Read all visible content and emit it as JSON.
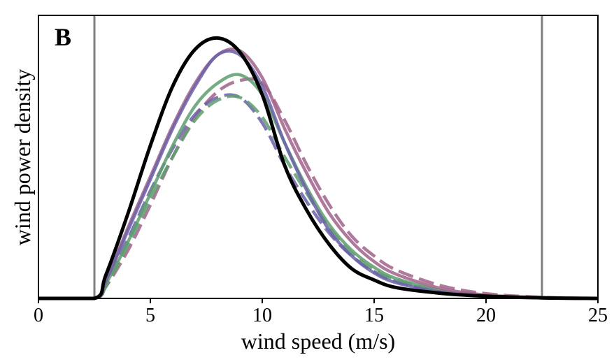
{
  "chart_data": {
    "type": "line",
    "panel_label": "B",
    "xlabel": "wind speed (m/s)",
    "ylabel": "wind power density",
    "xlim": [
      0,
      25
    ],
    "ylim": [
      0,
      1
    ],
    "xticks": [
      "0",
      "5",
      "10",
      "15",
      "20",
      "25"
    ],
    "y_tick_labels_shown": false,
    "grid": false,
    "legend": "none",
    "vertical_lines": [
      {
        "x": 2.5,
        "color": "#808080"
      },
      {
        "x": 22.5,
        "color": "#808080"
      }
    ],
    "x": [
      0,
      2.5,
      3,
      4,
      5,
      6,
      7,
      8,
      9,
      10,
      11,
      12,
      13,
      14,
      15,
      16,
      18,
      20,
      22.5,
      25
    ],
    "series": [
      {
        "color": "#a0628a",
        "style": "dashed",
        "values": [
          0,
          0,
          0.04,
          0.17,
          0.33,
          0.5,
          0.64,
          0.73,
          0.77,
          0.76,
          0.63,
          0.47,
          0.33,
          0.22,
          0.15,
          0.1,
          0.045,
          0.017,
          0.004,
          0
        ]
      },
      {
        "color": "#6b62a8",
        "style": "dashed",
        "values": [
          0,
          0,
          0.05,
          0.21,
          0.38,
          0.53,
          0.65,
          0.71,
          0.71,
          0.62,
          0.47,
          0.34,
          0.23,
          0.15,
          0.095,
          0.06,
          0.022,
          0.008,
          0.002,
          0
        ]
      },
      {
        "color": "#5e9e6e",
        "style": "dashed",
        "values": [
          0,
          0,
          0.04,
          0.19,
          0.35,
          0.5,
          0.63,
          0.7,
          0.71,
          0.64,
          0.5,
          0.37,
          0.25,
          0.16,
          0.1,
          0.065,
          0.025,
          0.009,
          0.002,
          0
        ]
      },
      {
        "color": "#5e9e6e",
        "style": "solid",
        "values": [
          0,
          0,
          0.05,
          0.2,
          0.37,
          0.54,
          0.68,
          0.76,
          0.79,
          0.72,
          0.55,
          0.39,
          0.26,
          0.17,
          0.11,
          0.07,
          0.028,
          0.01,
          0.002,
          0
        ]
      },
      {
        "color": "#a0628a",
        "style": "solid",
        "values": [
          0,
          0,
          0.06,
          0.25,
          0.43,
          0.61,
          0.76,
          0.86,
          0.875,
          0.78,
          0.6,
          0.44,
          0.3,
          0.2,
          0.13,
          0.085,
          0.035,
          0.012,
          0.003,
          0
        ]
      },
      {
        "color": "#6b62a8",
        "style": "solid",
        "values": [
          0,
          0,
          0.06,
          0.24,
          0.42,
          0.6,
          0.75,
          0.86,
          0.86,
          0.75,
          0.55,
          0.38,
          0.24,
          0.15,
          0.09,
          0.055,
          0.022,
          0.008,
          0.002,
          0
        ]
      },
      {
        "color": "#000000",
        "style": "solid",
        "values": [
          0,
          0,
          0.08,
          0.3,
          0.54,
          0.75,
          0.88,
          0.92,
          0.87,
          0.72,
          0.47,
          0.31,
          0.19,
          0.105,
          0.065,
          0.038,
          0.018,
          0.008,
          0.002,
          0
        ]
      }
    ]
  }
}
